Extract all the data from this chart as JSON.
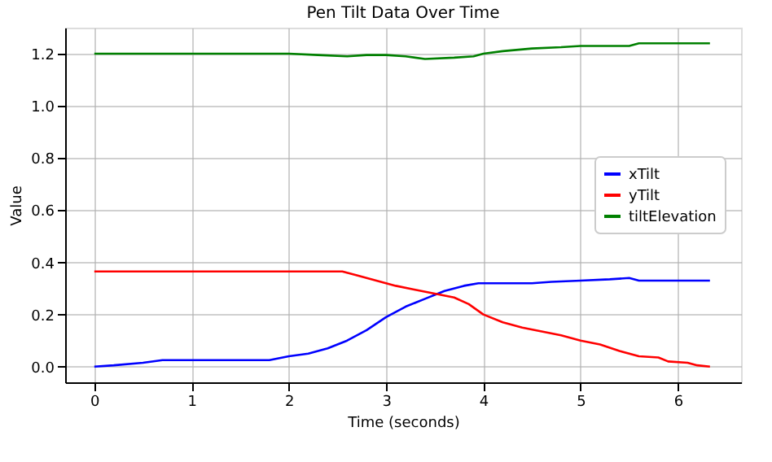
{
  "chart_data": {
    "type": "line",
    "title": "Pen Tilt Data Over Time",
    "xlabel": "Time (seconds)",
    "ylabel": "Value",
    "xlim": [
      -0.3,
      6.65
    ],
    "xticks": [
      0,
      1,
      2,
      3,
      4,
      5,
      6
    ],
    "ylim": [
      -0.06,
      1.3
    ],
    "yticks": [
      {
        "value": 0,
        "label": "0.0"
      },
      {
        "value": 0.2,
        "label": "0.2"
      },
      {
        "value": 0.4,
        "label": "0.4"
      },
      {
        "value": 0.6,
        "label": "0.6"
      },
      {
        "value": 0.8,
        "label": "0.8"
      },
      {
        "value": 1.0,
        "label": "1.0"
      },
      {
        "value": 1.2,
        "label": "1.2"
      }
    ],
    "grid": true,
    "legend": "right",
    "line_style": "solid",
    "marker": "none",
    "series": [
      {
        "name": "xTilt",
        "color": "#0000ff",
        "x": [
          0,
          0.2,
          0.5,
          0.7,
          1.8,
          2.0,
          2.2,
          2.4,
          2.6,
          2.8,
          3.0,
          3.2,
          3.4,
          3.6,
          3.8,
          3.95,
          4.5,
          4.7,
          5.0,
          5.3,
          5.5,
          5.6,
          6.33
        ],
        "values": [
          0,
          0.005,
          0.015,
          0.025,
          0.025,
          0.04,
          0.05,
          0.07,
          0.1,
          0.14,
          0.19,
          0.23,
          0.26,
          0.29,
          0.31,
          0.32,
          0.32,
          0.325,
          0.33,
          0.335,
          0.34,
          0.33,
          0.33
        ]
      },
      {
        "name": "yTilt",
        "color": "#ff0000",
        "x": [
          0,
          2.55,
          2.7,
          2.9,
          3.1,
          3.3,
          3.5,
          3.7,
          3.85,
          4.0,
          4.2,
          4.4,
          4.6,
          4.8,
          5.0,
          5.2,
          5.4,
          5.6,
          5.8,
          5.9,
          6.1,
          6.2,
          6.33
        ],
        "values": [
          0.365,
          0.365,
          0.35,
          0.33,
          0.31,
          0.295,
          0.28,
          0.265,
          0.24,
          0.2,
          0.17,
          0.15,
          0.135,
          0.12,
          0.1,
          0.085,
          0.06,
          0.04,
          0.035,
          0.02,
          0.015,
          0.005,
          0
        ]
      },
      {
        "name": "tiltElevation",
        "color": "#008000",
        "x": [
          0,
          2.0,
          2.3,
          2.6,
          2.8,
          3.0,
          3.2,
          3.4,
          3.7,
          3.9,
          4.0,
          4.2,
          4.5,
          4.8,
          5.0,
          5.5,
          5.6,
          6.33
        ],
        "values": [
          1.2,
          1.2,
          1.195,
          1.19,
          1.195,
          1.195,
          1.19,
          1.18,
          1.185,
          1.19,
          1.2,
          1.21,
          1.22,
          1.225,
          1.23,
          1.23,
          1.24,
          1.24
        ]
      }
    ]
  }
}
